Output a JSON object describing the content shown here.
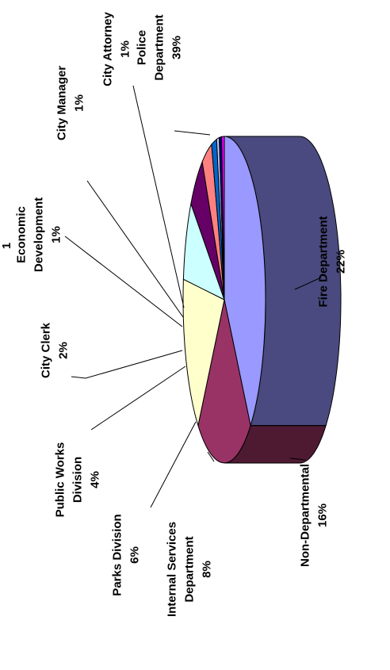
{
  "chart_data": {
    "type": "pie",
    "three_d": true,
    "title": "",
    "legend": "none",
    "slices": [
      {
        "name": "Police Department",
        "label": [
          "Police",
          "Department"
        ],
        "value": 39,
        "pct_label": "39%",
        "color": "#9999ff",
        "side_color": "#4a4a80"
      },
      {
        "name": "Fire Department",
        "label": [
          "Fire Department"
        ],
        "value": 22,
        "pct_label": "22%",
        "color": "#993366",
        "side_color": "#4e1a32"
      },
      {
        "name": "Non-Departmental",
        "label": [
          "Non-Departmental"
        ],
        "value": 16,
        "pct_label": "16%",
        "color": "#ffffcc",
        "side_color": "#808066"
      },
      {
        "name": "Internal Services Department",
        "label": [
          "Internal Services",
          "Department"
        ],
        "value": 8,
        "pct_label": "8%",
        "color": "#ccffff",
        "side_color": "#668080"
      },
      {
        "name": "Parks Division",
        "label": [
          "Parks Division"
        ],
        "value": 6,
        "pct_label": "6%",
        "color": "#660066",
        "side_color": "#330033"
      },
      {
        "name": "Public Works Division",
        "label": [
          "Public Works",
          "Division"
        ],
        "value": 4,
        "pct_label": "4%",
        "color": "#ff8080",
        "side_color": "#804040"
      },
      {
        "name": "City Clerk",
        "label": [
          "City Clerk"
        ],
        "value": 2,
        "pct_label": "2%",
        "color": "#0066cc",
        "side_color": "#003366"
      },
      {
        "name": "Economic Development",
        "label": [
          "Economic",
          "Development"
        ],
        "value": 1,
        "pct_label": "1%",
        "color": "#ccccff",
        "side_color": "#666680"
      },
      {
        "name": "City Manager",
        "label": [
          "City Manager"
        ],
        "value": 1,
        "pct_label": "1%",
        "color": "#000080",
        "side_color": "#000040"
      },
      {
        "name": "City Attorney",
        "label": [
          "City Attorney"
        ],
        "value": 1,
        "pct_label": "1%",
        "color": "#ff00ff",
        "side_color": "#800080"
      }
    ],
    "partial_label_fragment": "1"
  }
}
